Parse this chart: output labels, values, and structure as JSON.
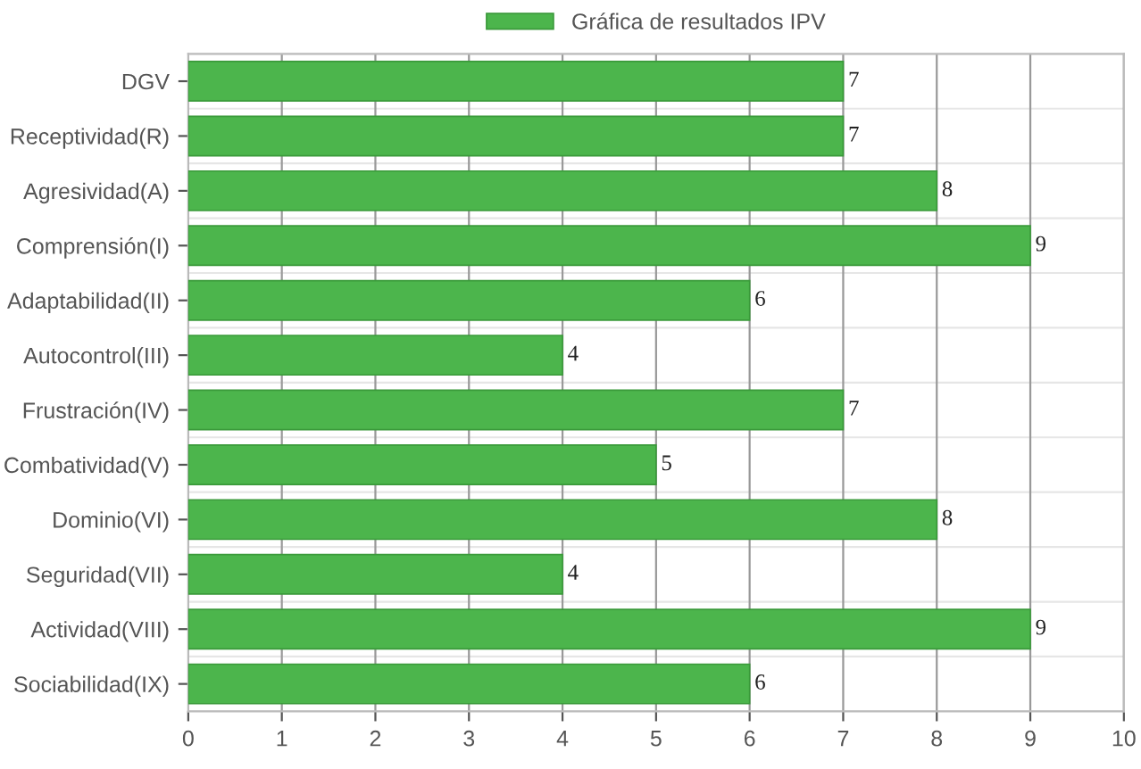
{
  "chart_data": {
    "type": "bar",
    "orientation": "horizontal",
    "categories": [
      "DGV",
      "Receptividad(R)",
      "Agresividad(A)",
      "Comprensión(I)",
      "Adaptabilidad(II)",
      "Autocontrol(III)",
      "Frustración(IV)",
      "Combatividad(V)",
      "Dominio(VI)",
      "Seguridad(VII)",
      "Actividad(VIII)",
      "Sociabilidad(IX)"
    ],
    "series": [
      {
        "name": "Gráfica de resultados IPV",
        "color": "#4cb54c",
        "values": [
          7,
          7,
          8,
          9,
          6,
          4,
          7,
          5,
          8,
          4,
          9,
          6
        ]
      }
    ],
    "xlim": [
      0,
      10
    ],
    "xticks": [
      0,
      1,
      2,
      3,
      4,
      5,
      6,
      7,
      8,
      9,
      10
    ],
    "grid": true,
    "legend": "top",
    "data_labels": true
  }
}
